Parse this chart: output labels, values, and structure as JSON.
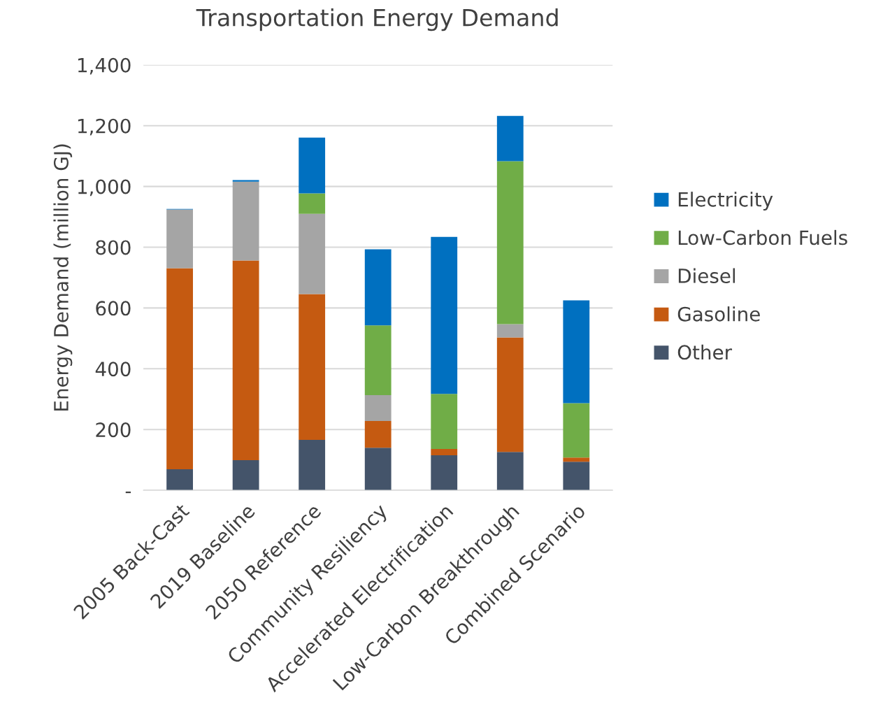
{
  "chart_data": {
    "type": "bar",
    "title": "Transportation Energy Demand",
    "ylabel": "Energy Demand (million GJ)",
    "categories": [
      "2005 Back-Cast",
      "2019 Baseline",
      "2050 Reference",
      "Community Resiliency",
      "Accelerated Electrification",
      "Low-Carbon Breakthrough",
      "Combined Scenario"
    ],
    "stacked": true,
    "series": [
      {
        "name": "Other",
        "color": "#44546a",
        "values": [
          69,
          99,
          166,
          140,
          115,
          126,
          94
        ]
      },
      {
        "name": "Gasoline",
        "color": "#c55a11",
        "values": [
          662,
          657,
          480,
          88,
          21,
          377,
          14
        ]
      },
      {
        "name": "Diesel",
        "color": "#a5a5a5",
        "values": [
          193,
          260,
          264,
          85,
          0,
          44,
          0
        ]
      },
      {
        "name": "Low-Carbon Fuels",
        "color": "#70ad47",
        "values": [
          0,
          0,
          67,
          230,
          181,
          536,
          179
        ]
      },
      {
        "name": "Electricity",
        "color": "#0070c0",
        "values": [
          2,
          5,
          184,
          250,
          517,
          149,
          338
        ]
      }
    ],
    "ylim": [
      0,
      1400
    ],
    "yticks": [
      {
        "value": 0,
        "label": "-"
      },
      {
        "value": 200,
        "label": "200"
      },
      {
        "value": 400,
        "label": "400"
      },
      {
        "value": 600,
        "label": "600"
      },
      {
        "value": 800,
        "label": "800"
      },
      {
        "value": 1000,
        "label": "1,000"
      },
      {
        "value": 1200,
        "label": "1,200"
      },
      {
        "value": 1400,
        "label": "1,400"
      }
    ],
    "grid": "y",
    "legend": "right"
  }
}
